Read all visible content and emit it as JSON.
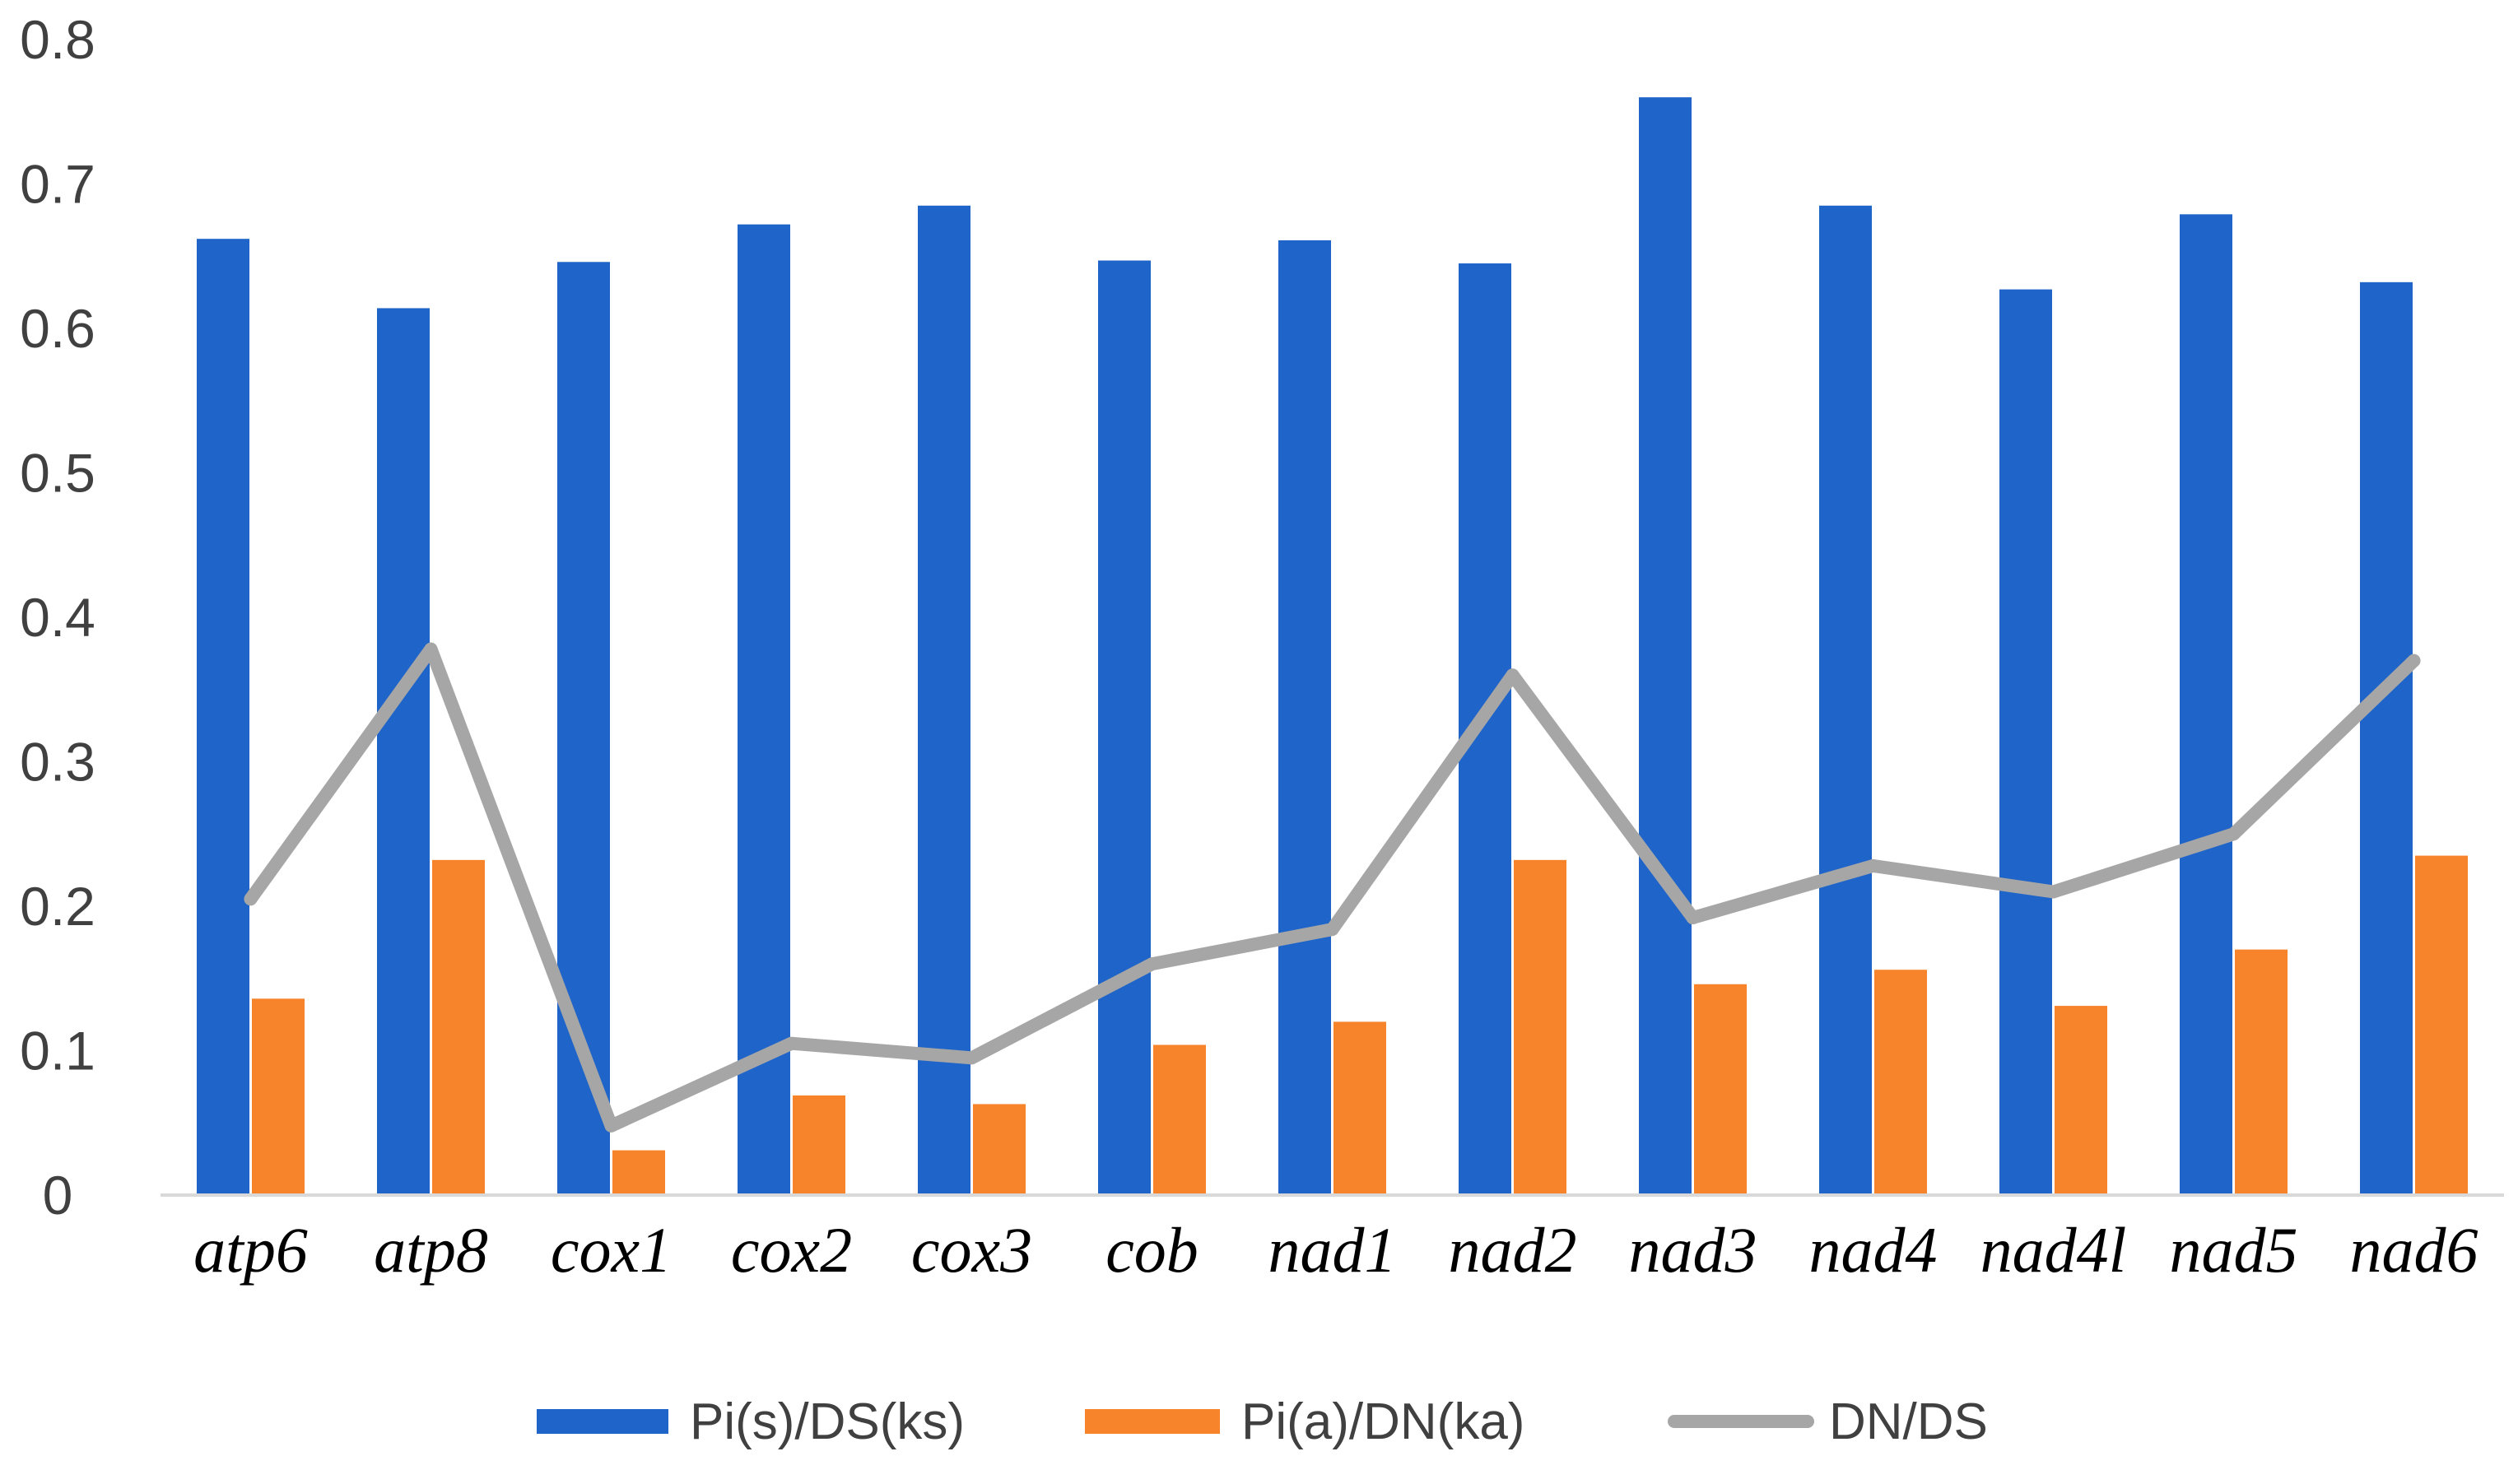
{
  "chart_data": {
    "type": "bar",
    "title": "",
    "xlabel": "",
    "ylabel": "",
    "ylim": [
      0,
      0.8
    ],
    "yticks": [
      "0",
      "0.1",
      "0.2",
      "0.3",
      "0.4",
      "0.5",
      "0.6",
      "0.7",
      "0.8"
    ],
    "categories": [
      "atp6",
      "atp8",
      "cox1",
      "cox2",
      "cox3",
      "cob",
      "nad1",
      "nad2",
      "nad3",
      "nad4",
      "nad4l",
      "nad5",
      "nad6"
    ],
    "series": [
      {
        "name": "Pi(s)/DS(ks)",
        "kind": "bar",
        "color": "#1F64C8",
        "values": [
          0.662,
          0.614,
          0.646,
          0.672,
          0.685,
          0.647,
          0.661,
          0.645,
          0.76,
          0.685,
          0.627,
          0.679,
          0.632
        ]
      },
      {
        "name": "Pi(a)/DN(ka)",
        "kind": "bar",
        "color": "#F7832A",
        "values": [
          0.136,
          0.232,
          0.031,
          0.069,
          0.063,
          0.104,
          0.12,
          0.232,
          0.146,
          0.156,
          0.131,
          0.17,
          0.235
        ]
      },
      {
        "name": "DN/DS",
        "kind": "line",
        "color": "#A6A6A6",
        "values": [
          0.205,
          0.378,
          0.048,
          0.105,
          0.095,
          0.16,
          0.184,
          0.36,
          0.192,
          0.228,
          0.21,
          0.25,
          0.37
        ]
      }
    ],
    "legend": "bottom",
    "grid": false
  }
}
